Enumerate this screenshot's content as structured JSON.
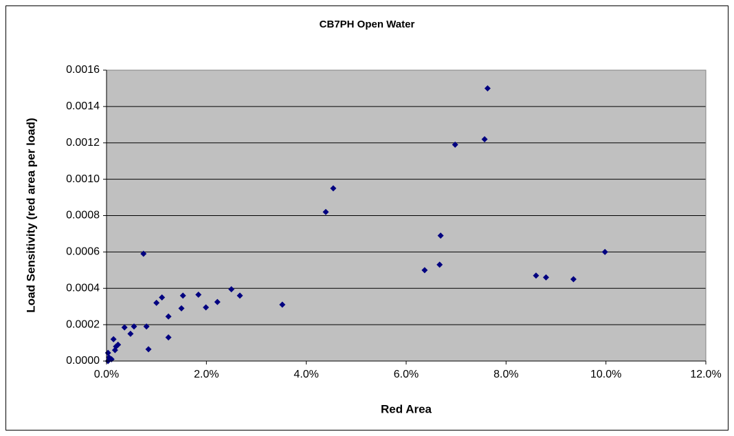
{
  "chart_data": {
    "type": "scatter",
    "title": "CB7PH Open Water",
    "x_label": "Red Area",
    "y_label": "Load Sensitivity (red area per load)",
    "color": "#000080",
    "grid": true,
    "xlim": [
      0,
      12
    ],
    "ylim": [
      0,
      0.0016
    ],
    "xticks": [
      {
        "value": 0,
        "label": "0.0%"
      },
      {
        "value": 2,
        "label": "2.0%"
      },
      {
        "value": 4,
        "label": "4.0%"
      },
      {
        "value": 6,
        "label": "6.0%"
      },
      {
        "value": 8,
        "label": "8.0%"
      },
      {
        "value": 10,
        "label": "10.0%"
      },
      {
        "value": 12,
        "label": "12.0%"
      }
    ],
    "yticks": [
      {
        "value": 0,
        "label": "0.0000"
      },
      {
        "value": 0.0002,
        "label": "0.0002"
      },
      {
        "value": 0.0004,
        "label": "0.0004"
      },
      {
        "value": 0.0006,
        "label": "0.0006"
      },
      {
        "value": 0.0008,
        "label": "0.0008"
      },
      {
        "value": 0.001,
        "label": "0.0010"
      },
      {
        "value": 0.0012,
        "label": "0.0012"
      },
      {
        "value": 0.0014,
        "label": "0.0014"
      },
      {
        "value": 0.0016,
        "label": "0.0016"
      }
    ],
    "x": [
      0.03,
      0.05,
      0.03,
      0.1,
      0.14,
      0.19,
      0.17,
      0.23,
      0.36,
      0.48,
      0.55,
      0.74,
      0.8,
      0.84,
      1.0,
      1.11,
      1.24,
      1.24,
      1.5,
      1.53,
      1.84,
      1.99,
      2.22,
      2.5,
      2.67,
      3.52,
      4.39,
      4.54,
      6.37,
      6.67,
      6.69,
      6.98,
      7.57,
      7.63,
      8.6,
      8.8,
      9.35,
      9.98
    ],
    "values": [
      0.0,
      2e-05,
      4.5e-05,
      1e-05,
      0.00012,
      8e-05,
      6e-05,
      9e-05,
      0.000185,
      0.00015,
      0.00019,
      0.00059,
      0.00019,
      6.5e-05,
      0.00032,
      0.00035,
      0.000245,
      0.00013,
      0.00029,
      0.00036,
      0.000365,
      0.000295,
      0.000325,
      0.000395,
      0.00036,
      0.00031,
      0.00082,
      0.00095,
      0.0005,
      0.00053,
      0.00069,
      0.00119,
      0.00122,
      0.0015,
      0.00047,
      0.00046,
      0.00045,
      0.0006
    ]
  }
}
